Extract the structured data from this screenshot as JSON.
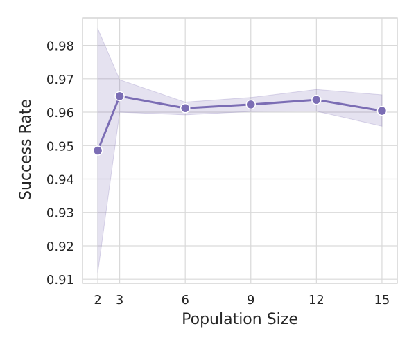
{
  "chart_data": {
    "type": "line",
    "title": "",
    "xlabel": "Population Size",
    "ylabel": "Success Rate",
    "x": [
      2,
      3,
      6,
      9,
      12,
      15
    ],
    "xticks": [
      2,
      3,
      6,
      9,
      12,
      15
    ],
    "yticks": [
      0.91,
      0.92,
      0.93,
      0.94,
      0.95,
      0.96,
      0.97,
      0.98
    ],
    "xlim": [
      1.3,
      15.7
    ],
    "ylim": [
      0.9088,
      0.9882
    ],
    "grid": true,
    "legend": "none",
    "series": [
      {
        "values": [
          0.9485,
          0.9648,
          0.9612,
          0.9623,
          0.9637,
          0.9604
        ],
        "ci_lower": [
          0.912,
          0.96,
          0.9592,
          0.9602,
          0.9603,
          0.9558
        ],
        "ci_upper": [
          0.985,
          0.9697,
          0.963,
          0.9644,
          0.9668,
          0.9652
        ],
        "color": "#7b6db4",
        "fill_color": "#7b6db4",
        "marker": "circle"
      }
    ]
  },
  "colors": {
    "grid": "#d9d9d9",
    "spine": "#cccccc",
    "text": "#262626"
  }
}
